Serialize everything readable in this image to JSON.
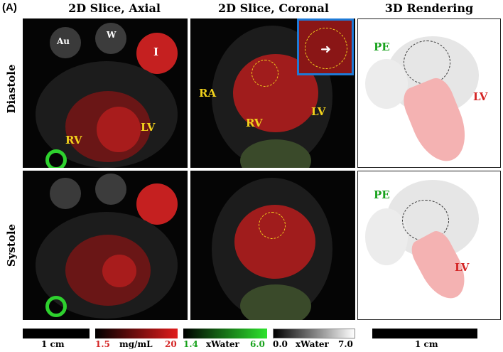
{
  "panel_letter": "(A)",
  "columns": {
    "axial": "2D Slice, Axial",
    "coronal": "2D Slice, Coronal",
    "render3d": "3D Rendering"
  },
  "rows": {
    "diastole": "Diastole",
    "systole": "Systole"
  },
  "labels": {
    "au": "Au",
    "w": "W",
    "i": "I",
    "rv": "RV",
    "lv": "LV",
    "ra": "RA",
    "pe": "PE"
  },
  "scales": {
    "axial_bar": "1 cm",
    "iodine_min": "1.5",
    "iodine_unit": "mg/mL",
    "iodine_max": "20",
    "gd_min": "1.4",
    "gd_unit": "xWater",
    "gd_max": "6.0",
    "gray_min": "0.0",
    "gray_unit": "xWater",
    "gray_max": "7.0",
    "render_bar": "1 cm"
  },
  "colors": {
    "iodine": "#d42424",
    "gold": "#18c21c",
    "label_yellow": "#f2d21c",
    "inset_border": "#1e7ad6"
  }
}
